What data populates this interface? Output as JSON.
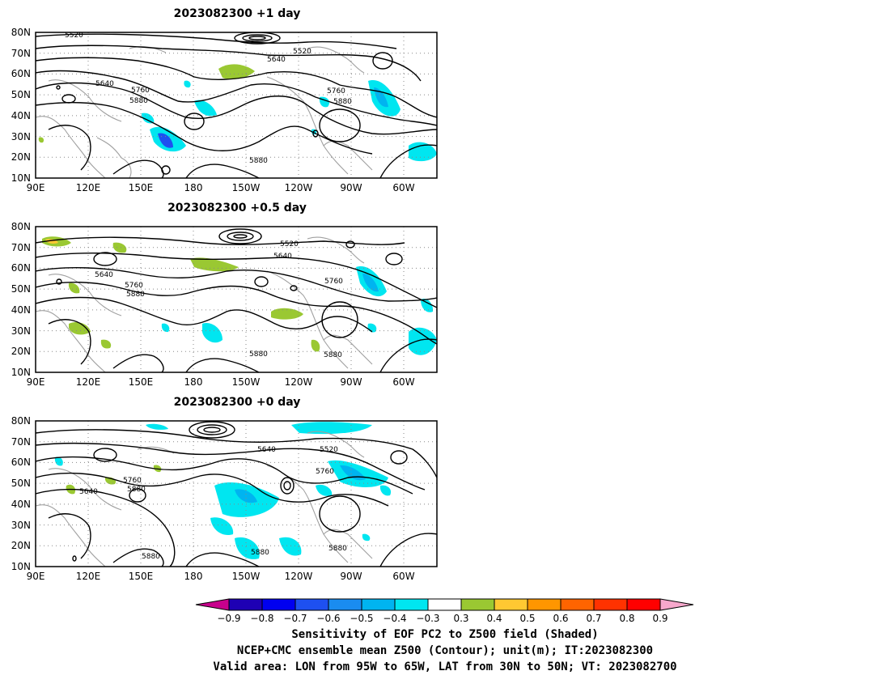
{
  "panels": [
    {
      "title": "2023082300 +1 day",
      "lat_labels": [
        "80N",
        "70N",
        "60N",
        "50N",
        "40N",
        "30N",
        "20N",
        "10N"
      ],
      "lon_labels": [
        "90E",
        "120E",
        "150E",
        "180",
        "150W",
        "120W",
        "90W",
        "60W"
      ],
      "contour_labels": [
        "5520",
        "5640",
        "5520",
        "5640",
        "5760",
        "5880",
        "5760",
        "5880",
        "5880"
      ]
    },
    {
      "title": "2023082300 +0.5 day",
      "lat_labels": [
        "80N",
        "70N",
        "60N",
        "50N",
        "40N",
        "30N",
        "20N",
        "10N"
      ],
      "lon_labels": [
        "90E",
        "120E",
        "150E",
        "180",
        "150W",
        "120W",
        "90W",
        "60W"
      ],
      "contour_labels": [
        "5520",
        "5640",
        "5640",
        "5760",
        "5880",
        "5760",
        "5880",
        "5880"
      ]
    },
    {
      "title": "2023082300 +0 day",
      "lat_labels": [
        "80N",
        "70N",
        "60N",
        "50N",
        "40N",
        "30N",
        "20N",
        "10N"
      ],
      "lon_labels": [
        "90E",
        "120E",
        "150E",
        "180",
        "150W",
        "120W",
        "90W",
        "60W"
      ],
      "contour_labels": [
        "5640",
        "5520",
        "5760",
        "5640",
        "5760",
        "5880",
        "5880",
        "5880",
        "5880"
      ]
    }
  ],
  "colorbar": {
    "tick_labels": [
      "−0.9",
      "−0.8",
      "−0.7",
      "−0.6",
      "−0.5",
      "−0.4",
      "−0.3",
      "0.3",
      "0.4",
      "0.5",
      "0.6",
      "0.7",
      "0.8",
      "0.9"
    ],
    "colors": [
      "#c8008c",
      "#1e00b4",
      "#0000f0",
      "#1e50f0",
      "#1a8cf0",
      "#00b4f0",
      "#00e6f0",
      "#ffffff",
      "#9ac832",
      "#ffc832",
      "#ff9600",
      "#ff6400",
      "#ff3200",
      "#ff0000",
      "#f7a8cc"
    ]
  },
  "caption": {
    "line1": "Sensitivity of EOF PC2 to Z500 field (Shaded)",
    "line2": "NCEP+CMC ensemble mean Z500 (Contour); unit(m); IT:2023082300",
    "line3": "Valid area: LON from 95W to 65W, LAT from 30N to 50N; VT: 2023082700"
  }
}
